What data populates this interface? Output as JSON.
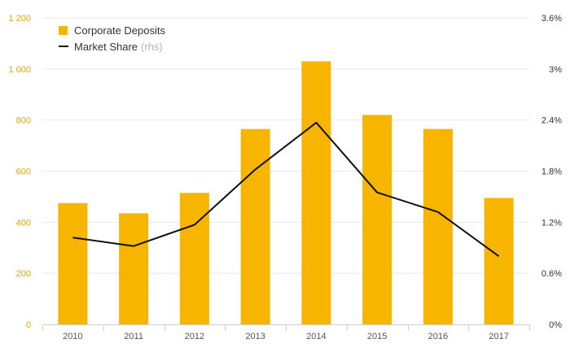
{
  "colors": {
    "bar": "#f7b500",
    "line": "#111111",
    "left_axis_text": "#e0a800",
    "right_axis_text": "#333333",
    "grid": "#e8e8e8"
  },
  "legend": {
    "bar_label": "Corporate Deposits",
    "line_label": "Market Share",
    "line_note": "(rhs)"
  },
  "chart_data": {
    "type": "bar",
    "categories": [
      "2010",
      "2011",
      "2012",
      "2013",
      "2014",
      "2015",
      "2016",
      "2017"
    ],
    "series": [
      {
        "name": "Corporate Deposits",
        "type": "bar",
        "axis": "left",
        "values": [
          475,
          435,
          515,
          765,
          1030,
          820,
          765,
          495
        ]
      },
      {
        "name": "Market Share",
        "type": "line",
        "axis": "right",
        "values": [
          1.02,
          0.92,
          1.17,
          1.82,
          2.37,
          1.55,
          1.32,
          0.8
        ]
      }
    ],
    "ylim_left": [
      0,
      1200
    ],
    "ylim_right": [
      0,
      3.6
    ],
    "yticks_left": [
      "0",
      "200",
      "400",
      "600",
      "800",
      "1 000",
      "1 200"
    ],
    "yticks_right": [
      "0%",
      "0.6%",
      "1.2%",
      "1.8%",
      "2.4%",
      "3%",
      "3.6%"
    ],
    "grid": true,
    "legend_position": "top-left"
  }
}
